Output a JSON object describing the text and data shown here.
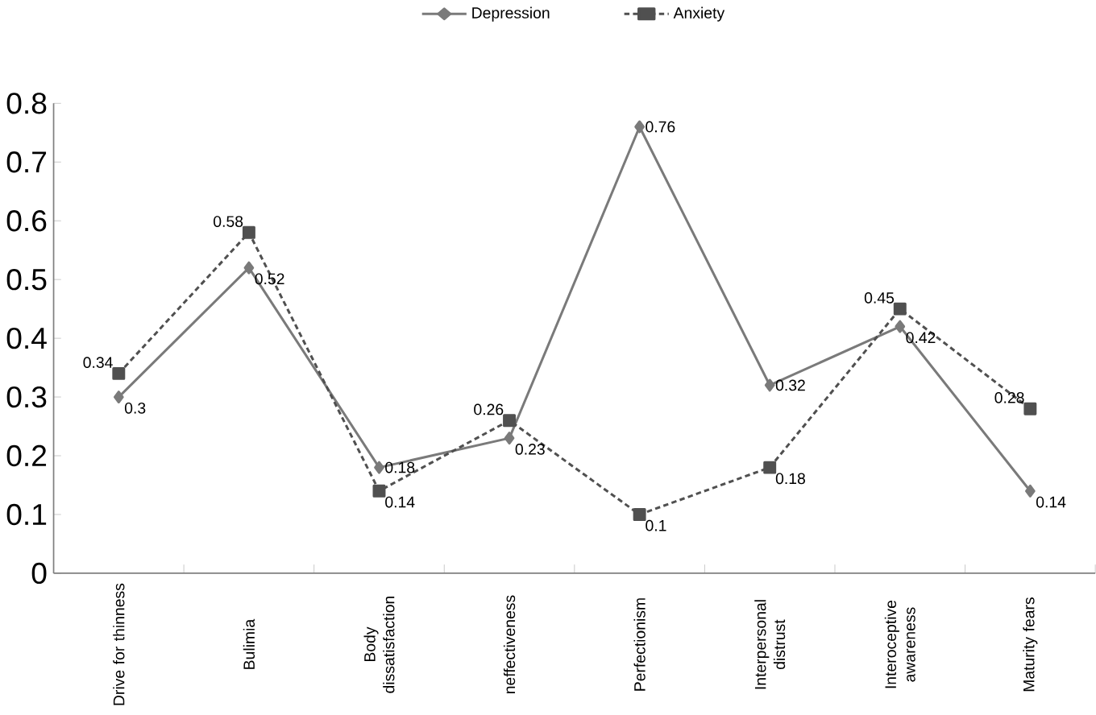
{
  "chart_data": {
    "type": "line",
    "categories": [
      "Drive for thinness",
      "Bulimia",
      "Body dissatisfaction",
      "neffectiveness",
      "Perfectionism",
      "Interpersonal distrust",
      "Interoceptive awareness",
      "Maturity fears"
    ],
    "series": [
      {
        "name": "Depression",
        "color": "#7a7a7a",
        "marker": "diamond",
        "line_style": "solid",
        "values": [
          0.3,
          0.52,
          0.18,
          0.23,
          0.76,
          0.32,
          0.42,
          0.14
        ]
      },
      {
        "name": "Anxiety",
        "color": "#505050",
        "marker": "square",
        "line_style": "dotted",
        "values": [
          0.34,
          0.58,
          0.14,
          0.26,
          0.1,
          0.18,
          0.45,
          0.28
        ]
      }
    ],
    "ylim": [
      0,
      0.8
    ],
    "yticks": [
      0,
      0.1,
      0.2,
      0.3,
      0.4,
      0.5,
      0.6,
      0.7,
      0.8
    ],
    "legend": "top",
    "data_labels": true,
    "grid": false
  }
}
